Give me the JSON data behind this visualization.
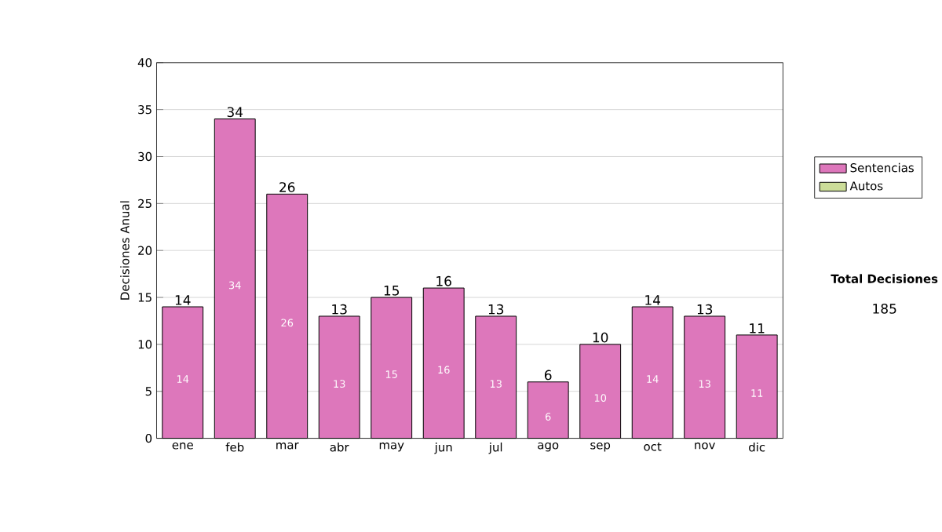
{
  "chart_data": {
    "type": "bar",
    "ylabel": "Decisiones Anual",
    "categories": [
      "ene",
      "feb",
      "mar",
      "abr",
      "may",
      "jun",
      "jul",
      "ago",
      "sep",
      "oct",
      "nov",
      "dic"
    ],
    "series": [
      {
        "name": "Sentencias",
        "color": "#dd77bb",
        "values": [
          14,
          34,
          26,
          13,
          15,
          16,
          13,
          6,
          10,
          14,
          13,
          11
        ],
        "value_labels": [
          "14",
          "34",
          "26",
          "13",
          "15",
          "16",
          "13",
          "6",
          "10",
          "14",
          "13",
          "11"
        ]
      },
      {
        "name": "Autos",
        "color": "#ccdd99",
        "values": [
          0,
          0,
          0,
          0,
          0,
          0,
          0,
          0,
          0,
          0,
          0,
          0
        ]
      }
    ],
    "stacked": true,
    "totals": [
      "14",
      "34",
      "26",
      "13",
      "15",
      "16",
      "13",
      "6",
      "10",
      "14",
      "13",
      "11"
    ],
    "ylim": [
      0,
      40
    ],
    "yticks": [
      0,
      5,
      10,
      15,
      20,
      25,
      30,
      35,
      40
    ],
    "grid": "y",
    "legend": "right",
    "annotations": [
      "Total Decisiones",
      "185"
    ]
  }
}
